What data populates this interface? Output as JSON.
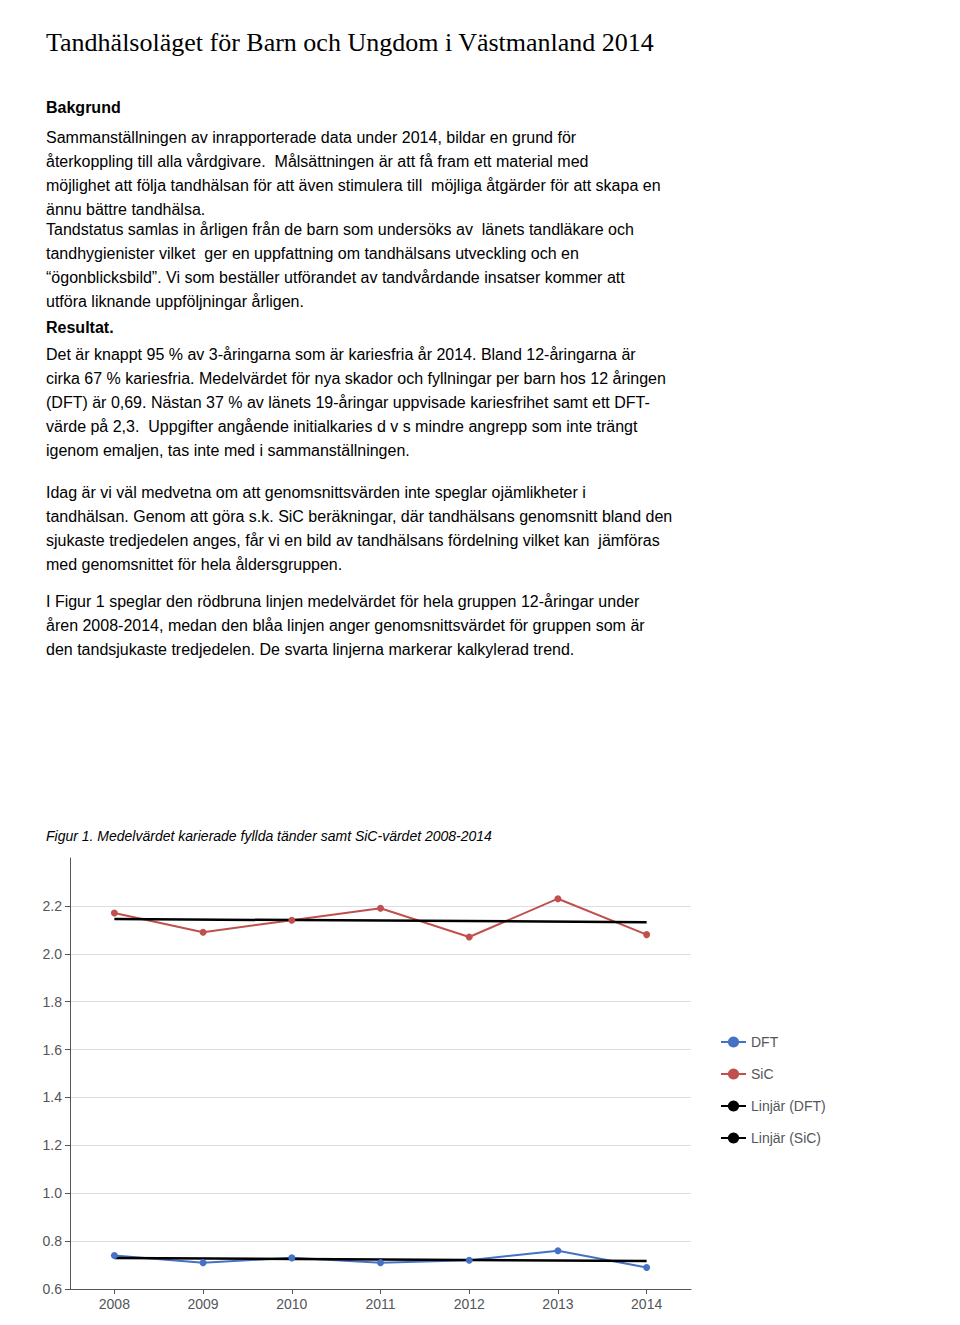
{
  "chart_data": {
    "type": "line",
    "title": "Tandhälsoläget för Barn och Ungdom i Västmanland 2014",
    "annotations": [
      "Bakgrund",
      "Sammanställningen av inrapporterade data under 2014, bildar en grund för\nåterkoppling till alla vårdgivare.  Målsättningen är att få fram ett material med\nmöjlighet att följa tandhälsan för att även stimulera till  möjliga åtgärder för att skapa en\nännu bättre tandhälsa.",
      "Tandstatus samlas in årligen från de barn som undersöks av  länets tandläkare och\ntandhygienister vilket  ger en uppfattning om tandhälsans utveckling och en\n“ögonblicksbild”. Vi som beställer utförandet av tandvårdande insatser kommer att\nutföra liknande uppföljningar årligen.",
      "Resultat.",
      "Det är knappt 95 % av 3-åringarna som är kariesfria år 2014. Bland 12-åringarna är\ncirka 67 % kariesfria. Medelvärdet för nya skador och fyllningar per barn hos 12 åringen\n(DFT) är 0,69. Nästan 37 % av länets 19-åringar uppvisade kariesfrihet samt ett DFT-\nvärde på 2,3.  Uppgifter angående initialkaries d v s mindre angrepp som inte trängt\nigenom emaljen, tas inte med i sammanställningen.",
      "Idag är vi väl medvetna om att genomsnittsvärden inte speglar ojämlikheter i\ntandhälsan. Genom att göra s.k. SiC beräkningar, där tandhälsans genomsnitt bland den\nsjukaste tredjedelen anges, får vi en bild av tandhälsans fördelning vilket kan  jämföras\nmed genomsnittet för hela åldersgruppen.",
      "I Figur 1 speglar den rödbruna linjen medelvärdet för hela gruppen 12-åringar under\nåren 2008-2014, medan den blåa linjen anger genomsnittsvärdet för gruppen som är\nden tandsjukaste tredjedelen. De svarta linjerna markerar kalkylerad trend.",
      "Figur 1. Medelvärdet karierade fyllda tänder samt SiC-värdet 2008-2014"
    ],
    "x": [
      2008,
      2009,
      2010,
      2011,
      2012,
      2013,
      2014
    ],
    "series": [
      {
        "name": "DFT",
        "color": "#4472C4",
        "marker": "circle",
        "values": [
          0.74,
          0.71,
          0.73,
          0.71,
          0.72,
          0.76,
          0.69
        ]
      },
      {
        "name": "SiC",
        "color": "#C0504D",
        "marker": "circle",
        "values": [
          2.17,
          2.09,
          2.14,
          2.19,
          2.07,
          2.23,
          2.08
        ]
      },
      {
        "name": "Linjär (DFT)",
        "color": "#000000",
        "marker": "none",
        "x": [
          2008,
          2014
        ],
        "values": [
          0.7292857,
          0.7164286
        ]
      },
      {
        "name": "Linjär (SiC)",
        "color": "#000000",
        "marker": "none",
        "x": [
          2008,
          2014
        ],
        "values": [
          2.145,
          2.1321429
        ]
      }
    ],
    "xlim": [
      2007.5,
      2014.5
    ],
    "xticks": [
      2008,
      2009,
      2010,
      2011,
      2012,
      2013,
      2014
    ],
    "ylim": [
      0.6,
      2.4
    ],
    "yticks": [
      0.6,
      0.8,
      {
        "value": 1,
        "label": "1.0"
      },
      1.2,
      1.4,
      1.6,
      1.8,
      {
        "value": 2,
        "label": "2.0"
      },
      2.2
    ],
    "grid": true,
    "legend": "right"
  }
}
